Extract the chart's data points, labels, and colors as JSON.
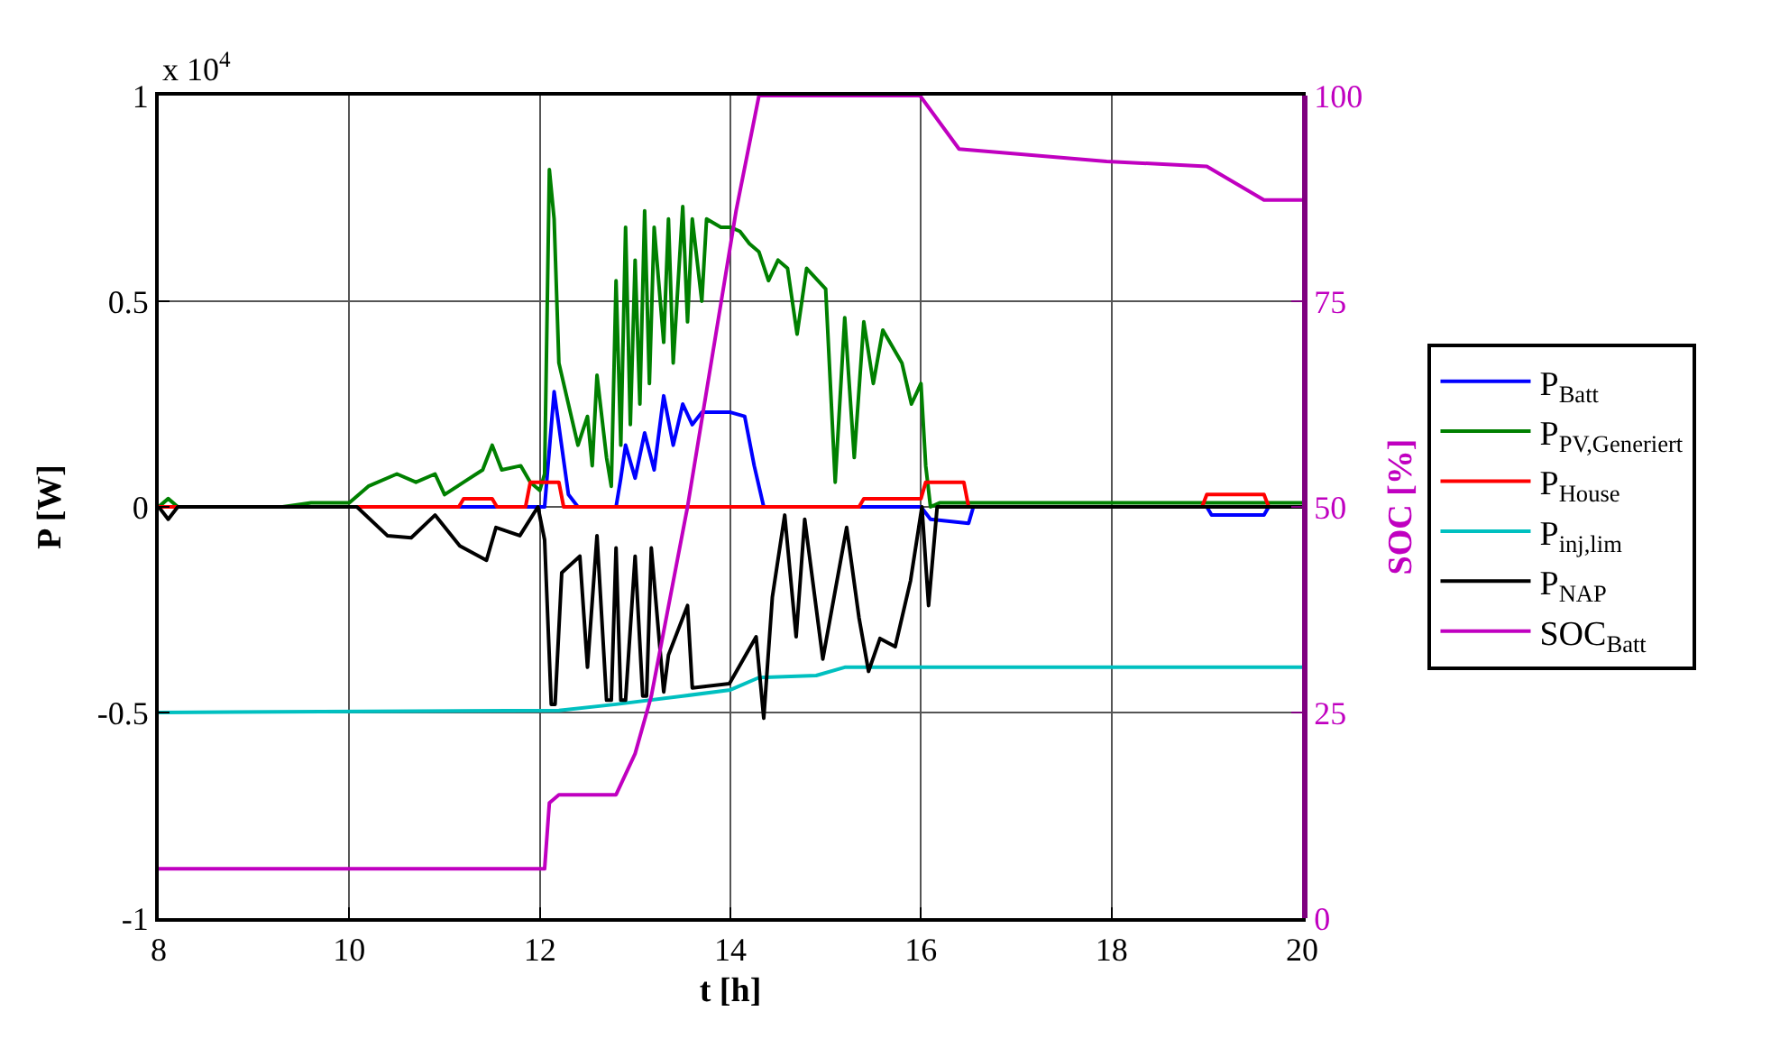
{
  "chart_data": {
    "type": "line",
    "xlabel": "t [h]",
    "ylabel": "P [W]",
    "y2label": "SOC [%]",
    "annotations": [
      "x 10$^{4}$"
    ],
    "xlim": [
      8,
      20
    ],
    "xticks": [
      8,
      10,
      12,
      14,
      16,
      18,
      20
    ],
    "ylim": [
      -1,
      1
    ],
    "yticks": [
      -1,
      -0.5,
      0,
      0.5,
      1
    ],
    "y2lim": [
      0,
      100
    ],
    "y2ticks": [
      0,
      25,
      50,
      75,
      100
    ],
    "grid": true,
    "legend": "right",
    "marker": "none",
    "line_style": "solid",
    "series": [
      {
        "name": "P$_{Batt}$",
        "color": "#0000ff",
        "x": [
          8,
          12.05,
          12.15,
          12.3,
          12.4,
          12.8,
          12.85,
          12.9,
          13.0,
          13.1,
          13.2,
          13.3,
          13.4,
          13.5,
          13.6,
          13.7,
          13.8,
          14.0,
          14.15,
          14.25,
          14.35,
          16.0,
          16.1,
          16.5,
          16.55,
          19.0,
          19.05,
          19.6,
          19.65,
          20
        ],
        "values": [
          0,
          0,
          0.28,
          0.03,
          0,
          0,
          0.07,
          0.15,
          0.07,
          0.18,
          0.09,
          0.27,
          0.15,
          0.25,
          0.2,
          0.23,
          0.23,
          0.23,
          0.22,
          0.1,
          0,
          0,
          -0.03,
          -0.04,
          0,
          0,
          -0.02,
          -0.02,
          0,
          0
        ]
      },
      {
        "name": "P$_{PV,Generiert}$",
        "color": "#008000",
        "x": [
          8,
          8.1,
          8.2,
          9.3,
          9.6,
          10.0,
          10.2,
          10.5,
          10.7,
          10.9,
          11.0,
          11.2,
          11.4,
          11.5,
          11.6,
          11.8,
          11.9,
          12.0,
          12.05,
          12.1,
          12.15,
          12.2,
          12.3,
          12.4,
          12.5,
          12.55,
          12.6,
          12.7,
          12.75,
          12.8,
          12.85,
          12.9,
          12.95,
          13.0,
          13.05,
          13.1,
          13.15,
          13.2,
          13.3,
          13.35,
          13.4,
          13.5,
          13.55,
          13.6,
          13.7,
          13.75,
          13.9,
          14.0,
          14.1,
          14.2,
          14.3,
          14.4,
          14.5,
          14.6,
          14.7,
          14.8,
          15.0,
          15.1,
          15.2,
          15.3,
          15.4,
          15.5,
          15.6,
          15.8,
          15.9,
          16.0,
          16.05,
          16.1,
          16.2,
          20
        ],
        "values": [
          0,
          0.02,
          0,
          0,
          0.01,
          0.01,
          0.05,
          0.08,
          0.06,
          0.08,
          0.03,
          0.06,
          0.09,
          0.15,
          0.09,
          0.1,
          0.06,
          0.04,
          0.08,
          0.82,
          0.7,
          0.35,
          0.25,
          0.15,
          0.22,
          0.1,
          0.32,
          0.12,
          0.05,
          0.55,
          0.15,
          0.68,
          0.2,
          0.6,
          0.25,
          0.72,
          0.3,
          0.68,
          0.4,
          0.7,
          0.35,
          0.73,
          0.45,
          0.7,
          0.5,
          0.7,
          0.68,
          0.68,
          0.67,
          0.64,
          0.62,
          0.55,
          0.6,
          0.58,
          0.42,
          0.58,
          0.53,
          0.06,
          0.46,
          0.12,
          0.45,
          0.3,
          0.43,
          0.35,
          0.25,
          0.3,
          0.1,
          0,
          0.01,
          0.01
        ]
      },
      {
        "name": "P$_{House}$",
        "color": "#ff0000",
        "x": [
          8,
          11.15,
          11.2,
          11.5,
          11.55,
          11.85,
          11.9,
          12.2,
          12.25,
          15.35,
          15.4,
          16.0,
          16.05,
          16.45,
          16.5,
          18.95,
          19.0,
          19.6,
          19.65,
          20
        ],
        "values": [
          0,
          0,
          0.02,
          0.02,
          0,
          0,
          0.06,
          0.06,
          0,
          0,
          0.02,
          0.02,
          0.06,
          0.06,
          0,
          0,
          0.03,
          0.03,
          0,
          0
        ]
      },
      {
        "name": "P$_{inj,lim}$",
        "color": "#00c0c0",
        "x": [
          8,
          12.2,
          12.8,
          13.5,
          14.0,
          14.3,
          14.9,
          15.2,
          20
        ],
        "values": [
          -0.5,
          -0.495,
          -0.48,
          -0.46,
          -0.445,
          -0.415,
          -0.41,
          -0.39,
          -0.39
        ]
      },
      {
        "name": "P$_{NAP}$",
        "color": "#000000",
        "x": [
          8,
          8.1,
          8.2,
          9.9,
          10.08,
          10.4,
          10.65,
          10.9,
          11.16,
          11.44,
          11.54,
          11.79,
          11.98,
          12.05,
          12.12,
          12.16,
          12.23,
          12.42,
          12.5,
          12.6,
          12.7,
          12.75,
          12.8,
          12.85,
          12.9,
          13.0,
          13.08,
          13.12,
          13.17,
          13.3,
          13.35,
          13.55,
          13.6,
          13.99,
          14.27,
          14.35,
          14.44,
          14.57,
          14.69,
          14.78,
          14.97,
          15.22,
          15.35,
          15.45,
          15.57,
          15.73,
          15.89,
          16.01,
          16.08,
          16.17,
          20
        ],
        "values": [
          0,
          -0.03,
          0,
          0,
          0,
          -0.07,
          -0.075,
          -0.02,
          -0.095,
          -0.13,
          -0.05,
          -0.07,
          0,
          -0.08,
          -0.48,
          -0.48,
          -0.16,
          -0.12,
          -0.39,
          -0.07,
          -0.47,
          -0.47,
          -0.1,
          -0.47,
          -0.47,
          -0.12,
          -0.46,
          -0.46,
          -0.1,
          -0.45,
          -0.36,
          -0.24,
          -0.44,
          -0.43,
          -0.316,
          -0.514,
          -0.22,
          -0.02,
          -0.316,
          -0.03,
          -0.37,
          -0.05,
          -0.27,
          -0.4,
          -0.32,
          -0.34,
          -0.18,
          0,
          -0.24,
          0,
          0
        ]
      },
      {
        "name": "SOC$_{Batt}$",
        "color": "#c000c0",
        "axis": "y2",
        "x": [
          8,
          12.05,
          12.1,
          12.2,
          12.8,
          13.0,
          13.17,
          13.55,
          14.06,
          14.3,
          15.99,
          16.4,
          17.95,
          19.0,
          19.6,
          20
        ],
        "values": [
          6,
          6,
          14,
          15,
          15,
          20,
          27,
          50,
          86,
          100,
          100,
          93.5,
          92,
          91.4,
          87.3,
          87.3
        ]
      }
    ]
  }
}
